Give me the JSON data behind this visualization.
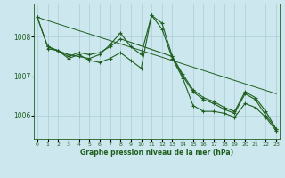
{
  "bg_color": "#cce8ee",
  "grid_color": "#aacdd6",
  "line_color": "#1f5e1f",
  "ylim": [
    1005.4,
    1008.85
  ],
  "xlim": [
    -0.3,
    23.3
  ],
  "yticks": [
    1006,
    1007,
    1008
  ],
  "xticks": [
    0,
    1,
    2,
    3,
    4,
    5,
    6,
    7,
    8,
    9,
    10,
    11,
    12,
    13,
    14,
    15,
    16,
    17,
    18,
    19,
    20,
    21,
    22,
    23
  ],
  "xlabel": "Graphe pression niveau de la mer (hPa)",
  "line_trend": {
    "x": [
      0,
      23
    ],
    "y": [
      1008.5,
      1006.55
    ]
  },
  "line_a": {
    "x": [
      0,
      1,
      2,
      3,
      4,
      5,
      6,
      7,
      8,
      9,
      10,
      11,
      12,
      13,
      14,
      15,
      16,
      17,
      18,
      19,
      20,
      21,
      22,
      23
    ],
    "y": [
      1008.5,
      1007.75,
      1007.65,
      1007.55,
      1007.5,
      1007.45,
      1007.55,
      1007.8,
      1008.1,
      1007.75,
      1007.55,
      1008.55,
      1008.35,
      1007.5,
      1007.0,
      1006.6,
      1006.4,
      1006.3,
      1006.15,
      1006.05,
      1006.55,
      1006.4,
      1006.0,
      1005.65
    ]
  },
  "line_b": {
    "x": [
      0,
      1,
      2,
      3,
      4,
      5,
      6,
      7,
      8,
      9,
      10,
      11,
      12,
      13,
      14,
      15,
      16,
      17,
      18,
      19,
      20,
      21,
      22,
      23
    ],
    "y": [
      1008.5,
      1007.75,
      1007.65,
      1007.45,
      1007.55,
      1007.4,
      1007.35,
      1007.45,
      1007.6,
      1007.4,
      1007.2,
      1008.55,
      1008.2,
      1007.45,
      1006.95,
      1006.25,
      1006.1,
      1006.1,
      1006.05,
      1005.95,
      1006.3,
      1006.2,
      1005.95,
      1005.6
    ]
  },
  "line_c": {
    "x": [
      1,
      2,
      3,
      4,
      5,
      6,
      7,
      8,
      13,
      14,
      15,
      16,
      17,
      18,
      19,
      20,
      21,
      22,
      23
    ],
    "y": [
      1007.7,
      1007.65,
      1007.5,
      1007.6,
      1007.55,
      1007.6,
      1007.75,
      1007.95,
      1007.5,
      1007.05,
      1006.65,
      1006.45,
      1006.35,
      1006.2,
      1006.1,
      1006.6,
      1006.45,
      1006.1,
      1005.65
    ]
  }
}
